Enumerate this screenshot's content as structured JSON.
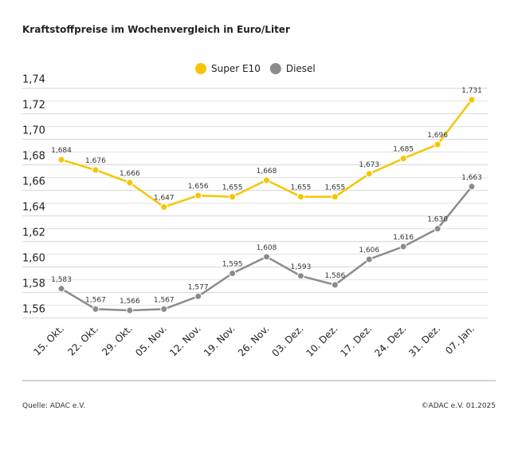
{
  "chart_data": {
    "type": "line",
    "title": "Kraftstoffpreise im Wochenvergleich in Euro/Liter",
    "categories": [
      "15. Okt.",
      "22. Okt.",
      "29. Okt.",
      "05. Nov.",
      "12. Nov.",
      "19. Nov.",
      "26. Nov.",
      "03. Dez.",
      "10. Dez.",
      "17. Dez.",
      "24. Dez.",
      "31. Dez.",
      "07. Jan."
    ],
    "series": [
      {
        "name": "Super E10",
        "color": "#f6c500",
        "values": [
          1.684,
          1.676,
          1.666,
          1.647,
          1.656,
          1.655,
          1.668,
          1.655,
          1.655,
          1.673,
          1.685,
          1.696,
          1.731
        ],
        "value_labels": [
          "1,684",
          "1,676",
          "1,666",
          "1,647",
          "1,656",
          "1,655",
          "1,668",
          "1,655",
          "1,655",
          "1,673",
          "1,685",
          "1,696",
          "1,731"
        ]
      },
      {
        "name": "Diesel",
        "color": "#8c8c8c",
        "values": [
          1.583,
          1.567,
          1.566,
          1.567,
          1.577,
          1.595,
          1.608,
          1.593,
          1.586,
          1.606,
          1.616,
          1.63,
          1.663
        ],
        "value_labels": [
          "1,583",
          "1,567",
          "1,566",
          "1,567",
          "1,577",
          "1,595",
          "1,608",
          "1,593",
          "1,586",
          "1,606",
          "1,616",
          "1,630",
          "1,663"
        ]
      }
    ],
    "ylim": [
      1.56,
      1.74
    ],
    "yticks": [
      {
        "value": 1.56,
        "label": "1,56"
      },
      {
        "value": 1.58,
        "label": "1,58"
      },
      {
        "value": 1.6,
        "label": "1,60"
      },
      {
        "value": 1.62,
        "label": "1,62"
      },
      {
        "value": 1.64,
        "label": "1,64"
      },
      {
        "value": 1.66,
        "label": "1,66"
      },
      {
        "value": 1.68,
        "label": "1,68"
      },
      {
        "value": 1.7,
        "label": "1,70"
      },
      {
        "value": 1.72,
        "label": "1,72"
      },
      {
        "value": 1.74,
        "label": "1,74"
      }
    ],
    "minor_yticks": [
      1.57,
      1.59,
      1.61,
      1.63,
      1.65,
      1.67,
      1.69,
      1.71,
      1.73
    ],
    "grid": true,
    "legend": "top",
    "source": "Quelle: ADAC e.V.",
    "copyright": "©ADAC e.V. 01.2025"
  }
}
